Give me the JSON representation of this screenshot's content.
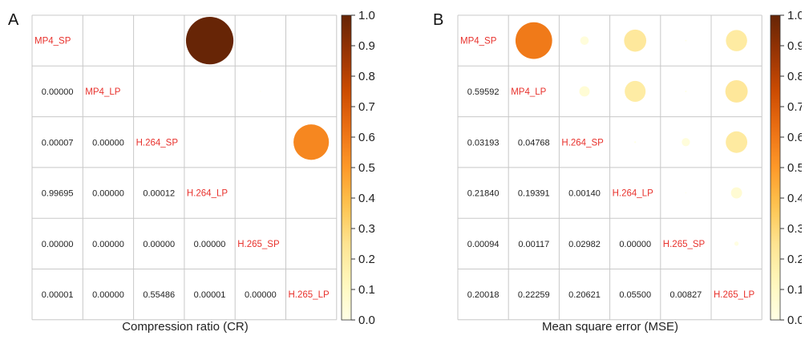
{
  "chart_data": [
    {
      "type": "heatmap",
      "panel_label": "A",
      "title": "Compression ratio (CR)",
      "variables": [
        "MP4_SP",
        "MP4_LP",
        "H.264_SP",
        "H.264_LP",
        "H.265_SP",
        "H.265_LP"
      ],
      "lower_triangle_values": [
        [
          "",
          "",
          "",
          "",
          "",
          ""
        ],
        [
          "0.00000",
          "",
          "",
          "",
          "",
          ""
        ],
        [
          "0.00007",
          "0.00000",
          "",
          "",
          "",
          ""
        ],
        [
          "0.99695",
          "0.00000",
          "0.00012",
          "",
          "",
          ""
        ],
        [
          "0.00000",
          "0.00000",
          "0.00000",
          "0.00000",
          "",
          ""
        ],
        [
          "0.00001",
          "0.00000",
          "0.55486",
          "0.00001",
          "0.00000",
          ""
        ]
      ],
      "upper_triangle_circles": [
        {
          "row": 0,
          "col": 3,
          "value": 0.99695
        },
        {
          "row": 1,
          "col": 4,
          "value": 0.0
        },
        {
          "row": 2,
          "col": 5,
          "value": 0.55486
        }
      ],
      "colorbar": {
        "min": 0.0,
        "max": 1.0,
        "ticks": [
          "0.0",
          "0.1",
          "0.2",
          "0.3",
          "0.4",
          "0.5",
          "0.6",
          "0.7",
          "0.8",
          "0.9",
          "1.0"
        ]
      }
    },
    {
      "type": "heatmap",
      "panel_label": "B",
      "title": "Mean square error (MSE)",
      "variables": [
        "MP4_SP",
        "MP4_LP",
        "H.264_SP",
        "H.264_LP",
        "H.265_SP",
        "H.265_LP"
      ],
      "lower_triangle_values": [
        [
          "",
          "",
          "",
          "",
          "",
          ""
        ],
        [
          "0.59592",
          "",
          "",
          "",
          "",
          ""
        ],
        [
          "0.03193",
          "0.04768",
          "",
          "",
          "",
          ""
        ],
        [
          "0.21840",
          "0.19391",
          "0.00140",
          "",
          "",
          ""
        ],
        [
          "0.00094",
          "0.00117",
          "0.02982",
          "0.00000",
          "",
          ""
        ],
        [
          "0.20018",
          "0.22259",
          "0.20621",
          "0.05500",
          "0.00827",
          ""
        ]
      ],
      "upper_triangle_circles": [
        {
          "row": 0,
          "col": 1,
          "value": 0.59592
        },
        {
          "row": 0,
          "col": 2,
          "value": 0.03193
        },
        {
          "row": 0,
          "col": 3,
          "value": 0.2184
        },
        {
          "row": 0,
          "col": 4,
          "value": 0.00094
        },
        {
          "row": 0,
          "col": 5,
          "value": 0.20018
        },
        {
          "row": 1,
          "col": 2,
          "value": 0.04768
        },
        {
          "row": 1,
          "col": 3,
          "value": 0.19391
        },
        {
          "row": 1,
          "col": 4,
          "value": 0.00117
        },
        {
          "row": 1,
          "col": 5,
          "value": 0.22259
        },
        {
          "row": 2,
          "col": 3,
          "value": 0.0014
        },
        {
          "row": 2,
          "col": 4,
          "value": 0.02982
        },
        {
          "row": 2,
          "col": 5,
          "value": 0.20621
        },
        {
          "row": 3,
          "col": 4,
          "value": 0.0
        },
        {
          "row": 3,
          "col": 5,
          "value": 0.055
        },
        {
          "row": 4,
          "col": 5,
          "value": 0.00827
        }
      ],
      "colorbar": {
        "min": 0.0,
        "max": 1.0,
        "ticks": [
          "0.0",
          "0.1",
          "0.2",
          "0.3",
          "0.4",
          "0.5",
          "0.6",
          "0.7",
          "0.8",
          "0.9",
          "1.0"
        ]
      }
    }
  ],
  "colors": {
    "diagonal_label": "#e8322d",
    "grid": "#c8c8c8",
    "value_text": "#222222",
    "colormap": [
      "#ffffe5",
      "#fff7bc",
      "#fee391",
      "#fec44f",
      "#fe9929",
      "#ec7014",
      "#cc4c02",
      "#993404",
      "#662506"
    ]
  }
}
